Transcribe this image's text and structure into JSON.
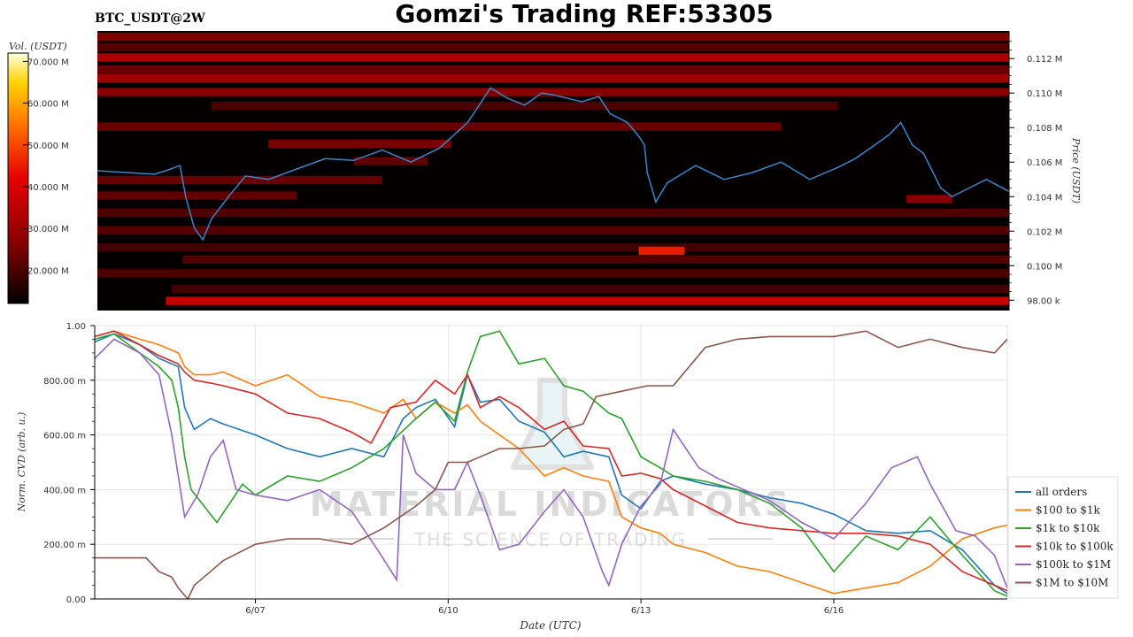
{
  "header": {
    "symbol": "BTC_USDT@2W",
    "title": "Gomzi's Trading REF:53305"
  },
  "watermark": {
    "brand": "MATERIAL INDICATORS",
    "tagline": "THE SCIENCE OF TRADING"
  },
  "chart_data": [
    {
      "type": "heatmap",
      "colorbar": {
        "label": "Vol. (USDT)",
        "ticks": [
          "70.000 M",
          "60.000 M",
          "50.000 M",
          "40.000 M",
          "30.000 M",
          "20.000 M"
        ],
        "tick_values": [
          70,
          60,
          50,
          40,
          30,
          20
        ],
        "range": [
          12,
          72
        ],
        "colors": [
          "#000000",
          "#8b0000",
          "#e60000",
          "#ff6a00",
          "#ffd200",
          "#ffffe0"
        ]
      },
      "ylabel": "Price (USDT)",
      "yticks": [
        "0.112 M",
        "0.110 M",
        "0.108 M",
        "0.106 M",
        "0.104 M",
        "0.102 M",
        "0.100 M",
        "98.00 k"
      ],
      "ytick_values": [
        112000,
        110000,
        108000,
        106000,
        104000,
        102000,
        100000,
        98000
      ],
      "ylim": [
        97400,
        113600
      ],
      "xlim": [
        0,
        16
      ],
      "liquidity_bands": [
        {
          "price": 113200,
          "start": 0,
          "end": 16,
          "intensity": 0.55
        },
        {
          "price": 112600,
          "start": 0,
          "end": 16,
          "intensity": 0.35
        },
        {
          "price": 112000,
          "start": 0,
          "end": 16,
          "intensity": 0.75
        },
        {
          "price": 111300,
          "start": 0,
          "end": 16,
          "intensity": 0.45
        },
        {
          "price": 110800,
          "start": 0,
          "end": 16,
          "intensity": 0.7
        },
        {
          "price": 110000,
          "start": 0,
          "end": 16,
          "intensity": 0.6
        },
        {
          "price": 109200,
          "start": 2,
          "end": 13,
          "intensity": 0.3
        },
        {
          "price": 108000,
          "start": 0,
          "end": 12,
          "intensity": 0.45
        },
        {
          "price": 107000,
          "start": 3,
          "end": 6.2,
          "intensity": 0.55
        },
        {
          "price": 106000,
          "start": 4.5,
          "end": 5.8,
          "intensity": 0.4
        },
        {
          "price": 104900,
          "start": 0,
          "end": 5,
          "intensity": 0.45
        },
        {
          "price": 104000,
          "start": 0,
          "end": 3.5,
          "intensity": 0.4
        },
        {
          "price": 103800,
          "start": 14.2,
          "end": 15,
          "intensity": 0.6
        },
        {
          "price": 103000,
          "start": 0,
          "end": 16,
          "intensity": 0.3
        },
        {
          "price": 102000,
          "start": 0,
          "end": 16,
          "intensity": 0.35
        },
        {
          "price": 101000,
          "start": 0,
          "end": 16,
          "intensity": 0.25
        },
        {
          "price": 100800,
          "start": 9.5,
          "end": 10.3,
          "intensity": 0.95
        },
        {
          "price": 100300,
          "start": 1.5,
          "end": 16,
          "intensity": 0.35
        },
        {
          "price": 99500,
          "start": 0,
          "end": 16,
          "intensity": 0.3
        },
        {
          "price": 98600,
          "start": 1.3,
          "end": 16,
          "intensity": 0.25
        },
        {
          "price": 97900,
          "start": 1.2,
          "end": 16,
          "intensity": 0.85
        }
      ],
      "price_line": {
        "color": "#3d85c6",
        "x": [
          0,
          0.5,
          1,
          1.2,
          1.45,
          1.55,
          1.7,
          1.85,
          2,
          2.3,
          2.6,
          3,
          3.5,
          4,
          4.5,
          5,
          5.5,
          6,
          6.5,
          6.9,
          7.2,
          7.5,
          7.8,
          8,
          8.5,
          8.8,
          9,
          9.3,
          9.5,
          9.6,
          9.65,
          9.8,
          10,
          10.5,
          11,
          11.5,
          12,
          12.5,
          13,
          13.3,
          13.6,
          13.9,
          14.1,
          14.3,
          14.5,
          14.8,
          15,
          15.3,
          15.6,
          16
        ],
        "y": [
          105500,
          105400,
          105300,
          105500,
          105800,
          104000,
          102200,
          101500,
          102700,
          104000,
          105200,
          105000,
          105600,
          106200,
          106100,
          106700,
          106000,
          106800,
          108300,
          110300,
          109700,
          109300,
          110000,
          109900,
          109500,
          109800,
          108800,
          108300,
          107500,
          107000,
          105400,
          103700,
          104800,
          105800,
          105000,
          105400,
          106000,
          105000,
          105700,
          106200,
          106900,
          107600,
          108300,
          107000,
          106500,
          104500,
          104000,
          104500,
          105000,
          104300
        ]
      }
    },
    {
      "type": "line",
      "xlabel": "Date (UTC)",
      "ylabel": "Norm. CVD (arb. u.)",
      "categories": [
        "6/07",
        "6/10",
        "6/13",
        "6/16"
      ],
      "category_positions": [
        2.5,
        5.5,
        8.5,
        11.5
      ],
      "xlim": [
        0,
        14.2
      ],
      "ylim": [
        0,
        1
      ],
      "yticks": [
        "1.00",
        "800.00 m",
        "600.00 m",
        "400.00 m",
        "200.00 m",
        "0.00"
      ],
      "ytick_values": [
        1,
        0.8,
        0.6,
        0.4,
        0.2,
        0
      ],
      "grid": true,
      "legend_position": "right",
      "series": [
        {
          "name": "all orders",
          "color": "#1f77b4",
          "x": [
            0,
            0.3,
            0.7,
            1,
            1.3,
            1.4,
            1.55,
            1.8,
            2,
            2.5,
            3,
            3.5,
            4,
            4.5,
            4.8,
            5,
            5.3,
            5.6,
            5.8,
            6,
            6.3,
            6.6,
            7,
            7.3,
            7.6,
            8,
            8.2,
            8.5,
            8.8,
            9,
            9.5,
            10,
            10.5,
            11,
            11.5,
            12,
            12.5,
            13,
            13.5,
            14,
            14.2
          ],
          "y": [
            0.94,
            0.97,
            0.93,
            0.88,
            0.85,
            0.7,
            0.62,
            0.66,
            0.64,
            0.6,
            0.55,
            0.52,
            0.55,
            0.52,
            0.66,
            0.7,
            0.73,
            0.63,
            0.82,
            0.72,
            0.73,
            0.65,
            0.61,
            0.52,
            0.54,
            0.52,
            0.38,
            0.33,
            0.43,
            0.45,
            0.42,
            0.4,
            0.37,
            0.35,
            0.31,
            0.25,
            0.24,
            0.25,
            0.18,
            0.05,
            0.02
          ]
        },
        {
          "name": "$100 to $1k",
          "color": "#ff7f0e",
          "x": [
            0,
            0.3,
            0.7,
            1,
            1.3,
            1.4,
            1.55,
            1.8,
            2,
            2.5,
            3,
            3.5,
            4,
            4.5,
            4.8,
            5,
            5.3,
            5.6,
            5.8,
            6,
            6.3,
            6.6,
            7,
            7.3,
            7.6,
            8,
            8.2,
            8.5,
            8.8,
            9,
            9.5,
            10,
            10.5,
            11,
            11.5,
            12,
            12.5,
            13,
            13.5,
            14,
            14.2
          ],
          "y": [
            0.96,
            0.98,
            0.95,
            0.93,
            0.9,
            0.85,
            0.82,
            0.82,
            0.83,
            0.78,
            0.82,
            0.74,
            0.72,
            0.68,
            0.73,
            0.66,
            0.72,
            0.68,
            0.71,
            0.65,
            0.6,
            0.55,
            0.45,
            0.48,
            0.45,
            0.43,
            0.3,
            0.26,
            0.24,
            0.2,
            0.17,
            0.12,
            0.1,
            0.06,
            0.02,
            0.04,
            0.06,
            0.12,
            0.22,
            0.26,
            0.27
          ]
        },
        {
          "name": "$1k to $10k",
          "color": "#2ca02c",
          "x": [
            0,
            0.3,
            0.7,
            1,
            1.2,
            1.3,
            1.4,
            1.5,
            1.7,
            1.9,
            2.1,
            2.3,
            2.5,
            3,
            3.5,
            4,
            4.5,
            5,
            5.3,
            5.6,
            5.8,
            6,
            6.3,
            6.6,
            7,
            7.3,
            7.6,
            8,
            8.2,
            8.5,
            8.8,
            9,
            9.5,
            10,
            10.5,
            11,
            11.5,
            12,
            12.5,
            13,
            13.5,
            14,
            14.2
          ],
          "y": [
            0.95,
            0.97,
            0.9,
            0.85,
            0.8,
            0.7,
            0.52,
            0.4,
            0.34,
            0.28,
            0.35,
            0.42,
            0.38,
            0.45,
            0.43,
            0.48,
            0.55,
            0.66,
            0.72,
            0.65,
            0.83,
            0.96,
            0.98,
            0.86,
            0.88,
            0.78,
            0.76,
            0.68,
            0.66,
            0.52,
            0.48,
            0.45,
            0.43,
            0.4,
            0.35,
            0.26,
            0.1,
            0.23,
            0.18,
            0.3,
            0.16,
            0.03,
            0.01
          ]
        },
        {
          "name": "$10k to $100k",
          "color": "#d62728",
          "x": [
            0,
            0.3,
            0.7,
            1,
            1.3,
            1.4,
            1.55,
            1.8,
            2,
            2.5,
            3,
            3.5,
            4,
            4.3,
            4.6,
            5,
            5.3,
            5.6,
            5.8,
            6,
            6.3,
            6.6,
            7,
            7.3,
            7.6,
            8,
            8.2,
            8.5,
            8.8,
            9,
            9.5,
            10,
            10.5,
            11,
            11.5,
            12,
            12.5,
            13,
            13.5,
            14,
            14.2
          ],
          "y": [
            0.96,
            0.98,
            0.93,
            0.89,
            0.86,
            0.83,
            0.8,
            0.79,
            0.78,
            0.75,
            0.68,
            0.66,
            0.61,
            0.57,
            0.7,
            0.72,
            0.8,
            0.75,
            0.82,
            0.7,
            0.74,
            0.7,
            0.62,
            0.65,
            0.56,
            0.55,
            0.45,
            0.46,
            0.44,
            0.4,
            0.34,
            0.28,
            0.26,
            0.25,
            0.24,
            0.24,
            0.23,
            0.2,
            0.1,
            0.05,
            0.03
          ]
        },
        {
          "name": "$100k to $1M",
          "color": "#9467bd",
          "x": [
            0,
            0.3,
            0.7,
            1,
            1.2,
            1.3,
            1.4,
            1.6,
            1.8,
            2,
            2.2,
            2.5,
            3,
            3.5,
            4,
            4.4,
            4.7,
            4.8,
            5,
            5.3,
            5.6,
            5.8,
            6,
            6.3,
            6.6,
            7,
            7.3,
            7.6,
            7.9,
            8,
            8.2,
            8.5,
            8.8,
            9,
            9.4,
            9.7,
            10,
            10.5,
            11,
            11.5,
            12,
            12.4,
            12.8,
            13,
            13.4,
            13.7,
            14,
            14.2
          ],
          "y": [
            0.88,
            0.95,
            0.9,
            0.82,
            0.6,
            0.45,
            0.3,
            0.38,
            0.52,
            0.58,
            0.4,
            0.38,
            0.36,
            0.4,
            0.32,
            0.18,
            0.07,
            0.6,
            0.46,
            0.4,
            0.4,
            0.5,
            0.38,
            0.18,
            0.2,
            0.32,
            0.4,
            0.3,
            0.1,
            0.05,
            0.2,
            0.34,
            0.42,
            0.62,
            0.48,
            0.44,
            0.41,
            0.36,
            0.28,
            0.22,
            0.35,
            0.48,
            0.52,
            0.42,
            0.25,
            0.23,
            0.16,
            0.04
          ]
        },
        {
          "name": "$1M to $10M",
          "color": "#8c564b",
          "x": [
            0,
            0.8,
            1,
            1.2,
            1.3,
            1.45,
            1.55,
            1.7,
            2,
            2.5,
            3,
            3.5,
            4,
            4.5,
            5,
            5.3,
            5.5,
            5.8,
            6,
            6.3,
            6.6,
            7,
            7.3,
            7.6,
            7.8,
            8.2,
            8.6,
            9,
            9.5,
            10,
            10.5,
            11,
            11.5,
            12,
            12.5,
            13,
            13.5,
            14,
            14.2
          ],
          "y": [
            0.15,
            0.15,
            0.1,
            0.08,
            0.04,
            0.0,
            0.05,
            0.08,
            0.14,
            0.2,
            0.22,
            0.22,
            0.2,
            0.26,
            0.34,
            0.4,
            0.5,
            0.5,
            0.52,
            0.55,
            0.55,
            0.56,
            0.62,
            0.64,
            0.74,
            0.76,
            0.78,
            0.78,
            0.92,
            0.95,
            0.96,
            0.96,
            0.96,
            0.98,
            0.92,
            0.95,
            0.92,
            0.9,
            0.95
          ]
        }
      ]
    }
  ]
}
